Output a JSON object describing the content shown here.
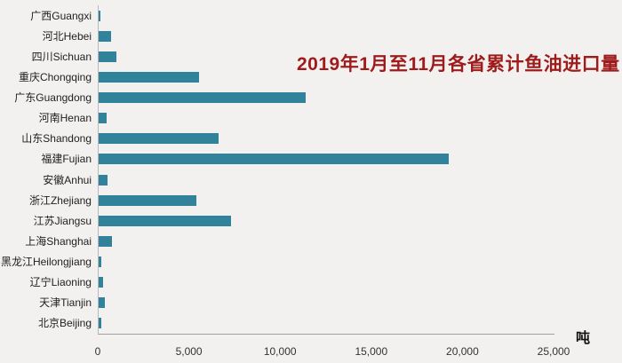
{
  "chart_data": {
    "type": "bar",
    "orientation": "horizontal",
    "title": "2019年1月至11月各省累计鱼油进口量",
    "unit_label": "吨",
    "categories": [
      "广西Guangxi",
      "河北Hebei",
      "四川Sichuan",
      "重庆Chongqing",
      "广东Guangdong",
      "河南Henan",
      "山东Shandong",
      "福建Fujian",
      "安徽Anhui",
      "浙江Zhejiang",
      "江苏Jiangsu",
      "上海Shanghai",
      "黑龙江Heilongjiang",
      "辽宁Liaoning",
      "天津Tianjin",
      "北京Beijing"
    ],
    "values": [
      100,
      680,
      960,
      5500,
      11350,
      430,
      6600,
      19200,
      470,
      5350,
      7250,
      730,
      170,
      230,
      330,
      140
    ],
    "xlabel": "",
    "ylabel": "",
    "xlim": [
      0,
      25000
    ],
    "x_ticks": [
      0,
      5000,
      10000,
      15000,
      20000,
      25000
    ],
    "x_tick_labels": [
      "0",
      "5,000",
      "10,000",
      "15,000",
      "20,000",
      "25,000"
    ],
    "grid": false,
    "legend": false,
    "colors": {
      "bar": "#31839B",
      "title": "#9E1B1B",
      "background": "#F2F1EF",
      "axis_line": "#A0A0A0",
      "label_text": "#1F1F1F"
    }
  }
}
